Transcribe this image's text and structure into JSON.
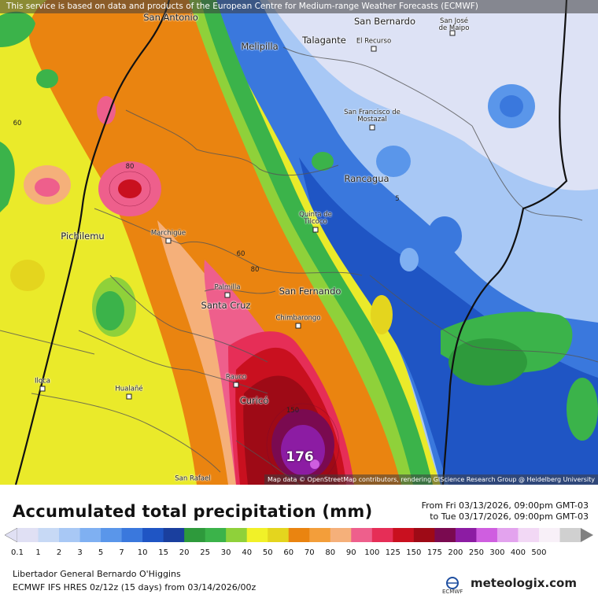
{
  "notice": "This service is based on data and products of the European Centre for Medium-range Weather Forecasts (ECMWF)",
  "attribution": "Map data © OpenStreetMap contributors, rendering GIScience Research Group @ Heidelberg University",
  "cities": {
    "san_antonio": "San Antonio",
    "san_bernardo": "San Bernardo",
    "san_jose_de_maipo": "San José de Maipo",
    "melipilla": "Melipilla",
    "talagante": "Talagante",
    "el_recurso": "El Recurso",
    "san_francisco_de_mostazal": "San Francisco de Mostazal",
    "rancagua": "Rancagua",
    "quinta_de_tilcoco": "Quinta de Tilcoco",
    "pichilemu": "Pichilemu",
    "marchigue": "Marchigüe",
    "palmilla": "Palmilla",
    "santa_cruz": "Santa Cruz",
    "san_fernando": "San Fernando",
    "chimbarongo": "Chimbarongo",
    "iloca": "Iloca",
    "hualane": "Hualañé",
    "rauco": "Rauco",
    "curico": "Curicó",
    "san_rafael": "San Rafael"
  },
  "contour_labels": [
    "60",
    "80",
    "60",
    "80",
    "5",
    "150"
  ],
  "max_value": "176",
  "legend": {
    "title": "Accumulated total precipitation (mm)",
    "from": "From Fri 03/13/2026, 09:00pm GMT-03",
    "to": "to Tue 03/17/2026, 09:00pm GMT-03",
    "ticks": [
      "0.1",
      "1",
      "2",
      "3",
      "5",
      "7",
      "10",
      "15",
      "20",
      "25",
      "30",
      "40",
      "50",
      "60",
      "70",
      "80",
      "90",
      "100",
      "125",
      "150",
      "175",
      "200",
      "250",
      "300",
      "400",
      "500"
    ],
    "colors": [
      "#e0e0f4",
      "#c7d9f5",
      "#a8c8f5",
      "#7fb0f2",
      "#5a96ea",
      "#3a78dd",
      "#1f55c4",
      "#1a3f9e",
      "#2e9a3c",
      "#3bb34a",
      "#8fd13a",
      "#f1f128",
      "#e4d51e",
      "#ea8410",
      "#f39e3a",
      "#f5b07a",
      "#ee5f8c",
      "#e62e57",
      "#c9101f",
      "#9e0a16",
      "#7a0a50",
      "#8c1ca3",
      "#cf5ee0",
      "#e3a3ee",
      "#f2d8f5",
      "#f8f0f8",
      "#d0d0d0"
    ]
  },
  "region": "Libertador General Bernardo O'Higgins",
  "model": "ECMWF IFS HRES 0z/12z (15 days) from 03/14/2026/00z",
  "ecmwf_label": "ECMWF",
  "brand": "meteologix.com"
}
